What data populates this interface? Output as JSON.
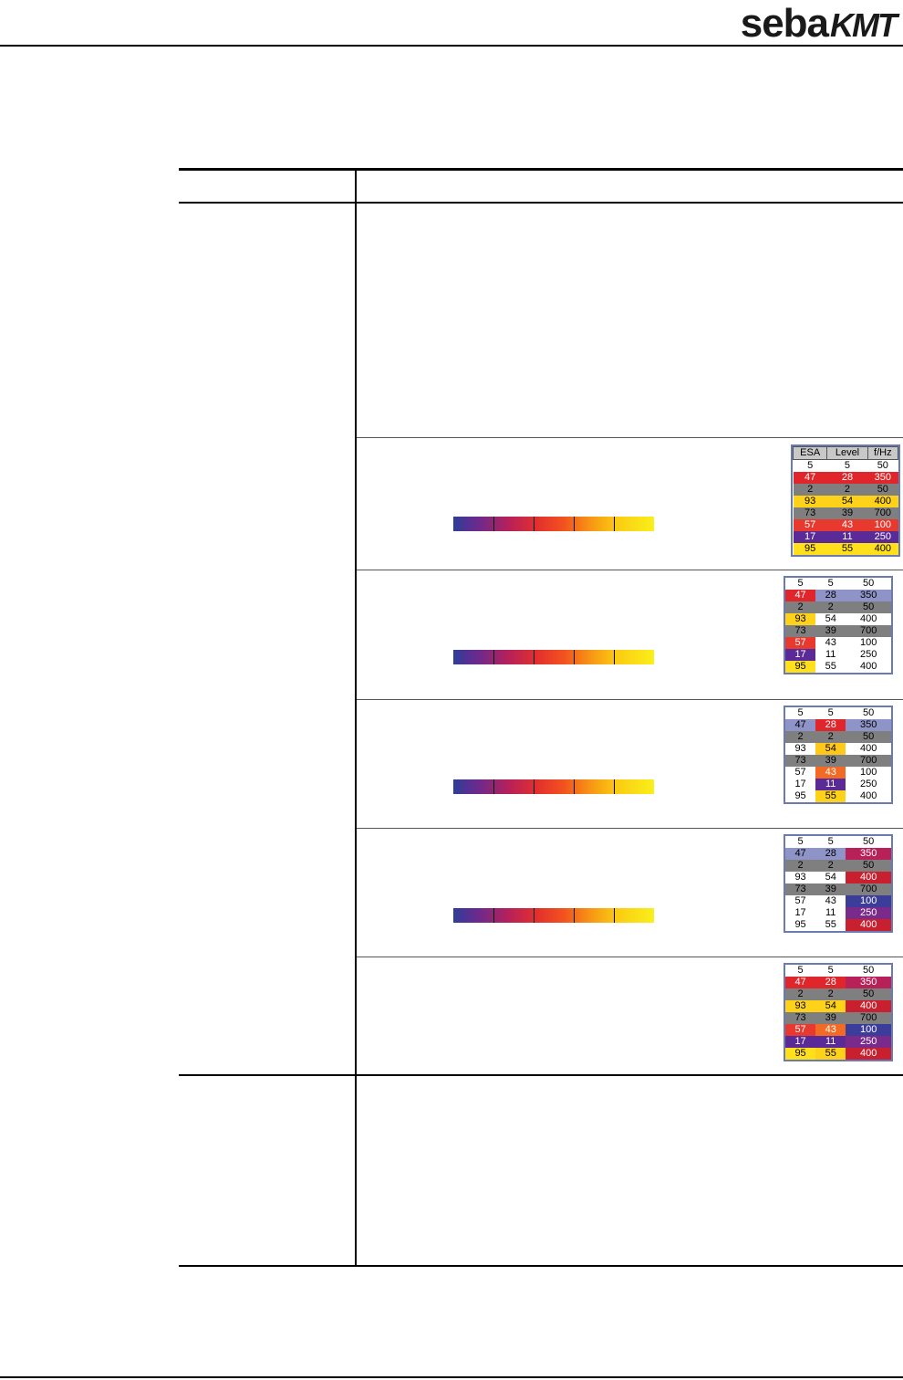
{
  "brand": {
    "name_part1": "seba",
    "name_part2": "KMT"
  },
  "tables": [
    {
      "id": "t1",
      "headers": [
        "ESA",
        "Level",
        "f/Hz"
      ],
      "rows": [
        [
          {
            "v": "5",
            "bg": "#ffffff",
            "fg": "#000"
          },
          {
            "v": "5",
            "bg": "#ffffff",
            "fg": "#000"
          },
          {
            "v": "50",
            "bg": "#ffffff",
            "fg": "#000"
          }
        ],
        [
          {
            "v": "47",
            "bg": "#e0262b",
            "fg": "#fff"
          },
          {
            "v": "28",
            "bg": "#e0262b",
            "fg": "#fff"
          },
          {
            "v": "350",
            "bg": "#e0262b",
            "fg": "#fff"
          }
        ],
        [
          {
            "v": "2",
            "bg": "#7f7f7f",
            "fg": "#000"
          },
          {
            "v": "2",
            "bg": "#7f7f7f",
            "fg": "#000"
          },
          {
            "v": "50",
            "bg": "#7f7f7f",
            "fg": "#000"
          }
        ],
        [
          {
            "v": "93",
            "bg": "#ffd21a",
            "fg": "#000"
          },
          {
            "v": "54",
            "bg": "#ffd21a",
            "fg": "#000"
          },
          {
            "v": "400",
            "bg": "#ffd21a",
            "fg": "#000"
          }
        ],
        [
          {
            "v": "73",
            "bg": "#7f7f7f",
            "fg": "#000"
          },
          {
            "v": "39",
            "bg": "#7f7f7f",
            "fg": "#000"
          },
          {
            "v": "700",
            "bg": "#7f7f7f",
            "fg": "#000"
          }
        ],
        [
          {
            "v": "57",
            "bg": "#e8392f",
            "fg": "#fff"
          },
          {
            "v": "43",
            "bg": "#e8392f",
            "fg": "#fff"
          },
          {
            "v": "100",
            "bg": "#e8392f",
            "fg": "#fff"
          }
        ],
        [
          {
            "v": "17",
            "bg": "#5a2a96",
            "fg": "#fff"
          },
          {
            "v": "11",
            "bg": "#5a2a96",
            "fg": "#fff"
          },
          {
            "v": "250",
            "bg": "#5a2a96",
            "fg": "#fff"
          }
        ],
        [
          {
            "v": "95",
            "bg": "#ffe01a",
            "fg": "#000"
          },
          {
            "v": "55",
            "bg": "#ffe01a",
            "fg": "#000"
          },
          {
            "v": "400",
            "bg": "#ffe01a",
            "fg": "#000"
          }
        ]
      ]
    },
    {
      "id": "t2",
      "headers": [],
      "rows": [
        [
          {
            "v": "5",
            "bg": "#fff",
            "fg": "#000"
          },
          {
            "v": "5",
            "bg": "#fff",
            "fg": "#000"
          },
          {
            "v": "50",
            "bg": "#fff",
            "fg": "#000"
          }
        ],
        [
          {
            "v": "47",
            "bg": "#e0262b",
            "fg": "#fff"
          },
          {
            "v": "28",
            "bg": "#8e93c8",
            "fg": "#000"
          },
          {
            "v": "350",
            "bg": "#8e93c8",
            "fg": "#000"
          }
        ],
        [
          {
            "v": "2",
            "bg": "#7f7f7f",
            "fg": "#000"
          },
          {
            "v": "2",
            "bg": "#7f7f7f",
            "fg": "#000"
          },
          {
            "v": "50",
            "bg": "#7f7f7f",
            "fg": "#000"
          }
        ],
        [
          {
            "v": "93",
            "bg": "#ffd21a",
            "fg": "#000"
          },
          {
            "v": "54",
            "bg": "#fff",
            "fg": "#000"
          },
          {
            "v": "400",
            "bg": "#fff",
            "fg": "#000"
          }
        ],
        [
          {
            "v": "73",
            "bg": "#7f7f7f",
            "fg": "#000"
          },
          {
            "v": "39",
            "bg": "#7f7f7f",
            "fg": "#000"
          },
          {
            "v": "700",
            "bg": "#7f7f7f",
            "fg": "#000"
          }
        ],
        [
          {
            "v": "57",
            "bg": "#e8392f",
            "fg": "#fff"
          },
          {
            "v": "43",
            "bg": "#fff",
            "fg": "#000"
          },
          {
            "v": "100",
            "bg": "#fff",
            "fg": "#000"
          }
        ],
        [
          {
            "v": "17",
            "bg": "#5a2a96",
            "fg": "#fff"
          },
          {
            "v": "11",
            "bg": "#fff",
            "fg": "#000"
          },
          {
            "v": "250",
            "bg": "#fff",
            "fg": "#000"
          }
        ],
        [
          {
            "v": "95",
            "bg": "#ffe01a",
            "fg": "#000"
          },
          {
            "v": "55",
            "bg": "#fff",
            "fg": "#000"
          },
          {
            "v": "400",
            "bg": "#fff",
            "fg": "#000"
          }
        ]
      ]
    },
    {
      "id": "t3",
      "headers": [],
      "rows": [
        [
          {
            "v": "5",
            "bg": "#fff",
            "fg": "#000"
          },
          {
            "v": "5",
            "bg": "#fff",
            "fg": "#000"
          },
          {
            "v": "50",
            "bg": "#fff",
            "fg": "#000"
          }
        ],
        [
          {
            "v": "47",
            "bg": "#8e93c8",
            "fg": "#000"
          },
          {
            "v": "28",
            "bg": "#e0262b",
            "fg": "#fff"
          },
          {
            "v": "350",
            "bg": "#8e93c8",
            "fg": "#000"
          }
        ],
        [
          {
            "v": "2",
            "bg": "#7f7f7f",
            "fg": "#000"
          },
          {
            "v": "2",
            "bg": "#7f7f7f",
            "fg": "#000"
          },
          {
            "v": "50",
            "bg": "#7f7f7f",
            "fg": "#000"
          }
        ],
        [
          {
            "v": "93",
            "bg": "#fff",
            "fg": "#000"
          },
          {
            "v": "54",
            "bg": "#ffc81a",
            "fg": "#000"
          },
          {
            "v": "400",
            "bg": "#fff",
            "fg": "#000"
          }
        ],
        [
          {
            "v": "73",
            "bg": "#7f7f7f",
            "fg": "#000"
          },
          {
            "v": "39",
            "bg": "#7f7f7f",
            "fg": "#000"
          },
          {
            "v": "700",
            "bg": "#7f7f7f",
            "fg": "#000"
          }
        ],
        [
          {
            "v": "57",
            "bg": "#fff",
            "fg": "#000"
          },
          {
            "v": "43",
            "bg": "#f26a23",
            "fg": "#fff"
          },
          {
            "v": "100",
            "bg": "#fff",
            "fg": "#000"
          }
        ],
        [
          {
            "v": "17",
            "bg": "#fff",
            "fg": "#000"
          },
          {
            "v": "11",
            "bg": "#5a2a96",
            "fg": "#fff"
          },
          {
            "v": "250",
            "bg": "#fff",
            "fg": "#000"
          }
        ],
        [
          {
            "v": "95",
            "bg": "#fff",
            "fg": "#000"
          },
          {
            "v": "55",
            "bg": "#ffd21a",
            "fg": "#000"
          },
          {
            "v": "400",
            "bg": "#fff",
            "fg": "#000"
          }
        ]
      ]
    },
    {
      "id": "t4",
      "headers": [],
      "rows": [
        [
          {
            "v": "5",
            "bg": "#fff",
            "fg": "#000"
          },
          {
            "v": "5",
            "bg": "#fff",
            "fg": "#000"
          },
          {
            "v": "50",
            "bg": "#fff",
            "fg": "#000"
          }
        ],
        [
          {
            "v": "47",
            "bg": "#8e93c8",
            "fg": "#000"
          },
          {
            "v": "28",
            "bg": "#8e93c8",
            "fg": "#000"
          },
          {
            "v": "350",
            "bg": "#b82158",
            "fg": "#fff"
          }
        ],
        [
          {
            "v": "2",
            "bg": "#7f7f7f",
            "fg": "#000"
          },
          {
            "v": "2",
            "bg": "#7f7f7f",
            "fg": "#000"
          },
          {
            "v": "50",
            "bg": "#7f7f7f",
            "fg": "#000"
          }
        ],
        [
          {
            "v": "93",
            "bg": "#fff",
            "fg": "#000"
          },
          {
            "v": "54",
            "bg": "#fff",
            "fg": "#000"
          },
          {
            "v": "400",
            "bg": "#c8202e",
            "fg": "#fff"
          }
        ],
        [
          {
            "v": "73",
            "bg": "#7f7f7f",
            "fg": "#000"
          },
          {
            "v": "39",
            "bg": "#7f7f7f",
            "fg": "#000"
          },
          {
            "v": "700",
            "bg": "#7f7f7f",
            "fg": "#000"
          }
        ],
        [
          {
            "v": "57",
            "bg": "#fff",
            "fg": "#000"
          },
          {
            "v": "43",
            "bg": "#fff",
            "fg": "#000"
          },
          {
            "v": "100",
            "bg": "#3c3d9a",
            "fg": "#fff"
          }
        ],
        [
          {
            "v": "17",
            "bg": "#fff",
            "fg": "#000"
          },
          {
            "v": "11",
            "bg": "#fff",
            "fg": "#000"
          },
          {
            "v": "250",
            "bg": "#7a2a8a",
            "fg": "#fff"
          }
        ],
        [
          {
            "v": "95",
            "bg": "#fff",
            "fg": "#000"
          },
          {
            "v": "55",
            "bg": "#fff",
            "fg": "#000"
          },
          {
            "v": "400",
            "bg": "#c8202e",
            "fg": "#fff"
          }
        ]
      ]
    },
    {
      "id": "t5",
      "headers": [],
      "rows": [
        [
          {
            "v": "5",
            "bg": "#fff",
            "fg": "#000"
          },
          {
            "v": "5",
            "bg": "#fff",
            "fg": "#000"
          },
          {
            "v": "50",
            "bg": "#fff",
            "fg": "#000"
          }
        ],
        [
          {
            "v": "47",
            "bg": "#e0262b",
            "fg": "#fff"
          },
          {
            "v": "28",
            "bg": "#e0262b",
            "fg": "#fff"
          },
          {
            "v": "350",
            "bg": "#b82158",
            "fg": "#fff"
          }
        ],
        [
          {
            "v": "2",
            "bg": "#7f7f7f",
            "fg": "#000"
          },
          {
            "v": "2",
            "bg": "#7f7f7f",
            "fg": "#000"
          },
          {
            "v": "50",
            "bg": "#7f7f7f",
            "fg": "#000"
          }
        ],
        [
          {
            "v": "93",
            "bg": "#ffd21a",
            "fg": "#000"
          },
          {
            "v": "54",
            "bg": "#ffd21a",
            "fg": "#000"
          },
          {
            "v": "400",
            "bg": "#c8202e",
            "fg": "#fff"
          }
        ],
        [
          {
            "v": "73",
            "bg": "#7f7f7f",
            "fg": "#000"
          },
          {
            "v": "39",
            "bg": "#7f7f7f",
            "fg": "#000"
          },
          {
            "v": "700",
            "bg": "#7f7f7f",
            "fg": "#000"
          }
        ],
        [
          {
            "v": "57",
            "bg": "#e8392f",
            "fg": "#fff"
          },
          {
            "v": "43",
            "bg": "#f26a23",
            "fg": "#fff"
          },
          {
            "v": "100",
            "bg": "#3c3d9a",
            "fg": "#fff"
          }
        ],
        [
          {
            "v": "17",
            "bg": "#5a2a96",
            "fg": "#fff"
          },
          {
            "v": "11",
            "bg": "#5a2a96",
            "fg": "#fff"
          },
          {
            "v": "250",
            "bg": "#7a2a8a",
            "fg": "#fff"
          }
        ],
        [
          {
            "v": "95",
            "bg": "#ffe01a",
            "fg": "#000"
          },
          {
            "v": "55",
            "bg": "#ffd21a",
            "fg": "#000"
          },
          {
            "v": "400",
            "bg": "#c8202e",
            "fg": "#fff"
          }
        ]
      ]
    }
  ]
}
